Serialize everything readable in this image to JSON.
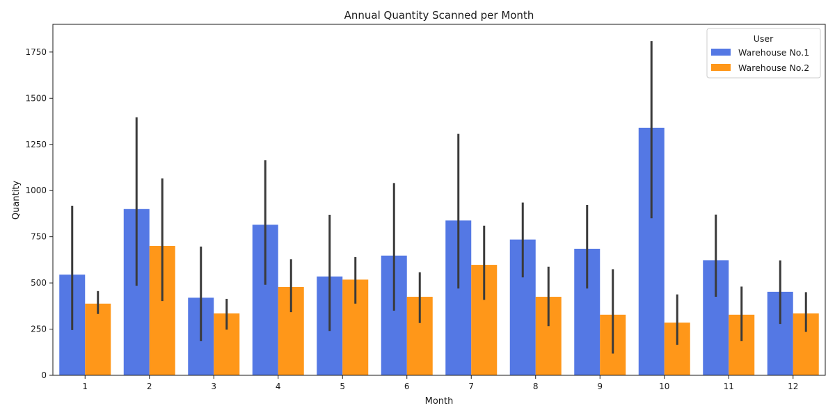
{
  "chart_data": {
    "type": "bar",
    "title": "Annual Quantity Scanned per Month",
    "xlabel": "Month",
    "ylabel": "Quantity",
    "categories": [
      "1",
      "2",
      "3",
      "4",
      "5",
      "6",
      "7",
      "8",
      "9",
      "10",
      "11",
      "12"
    ],
    "yticks": [
      0,
      250,
      500,
      750,
      1000,
      1250,
      1500,
      1750
    ],
    "ylim": [
      0,
      1900
    ],
    "grid": false,
    "legend": {
      "title": "User",
      "position": "top-right"
    },
    "series": [
      {
        "name": "Warehouse No.1",
        "color": "#4169e1",
        "values": [
          545,
          900,
          420,
          815,
          535,
          648,
          838,
          735,
          685,
          1340,
          623,
          452
        ],
        "error_low": [
          245,
          485,
          185,
          490,
          240,
          350,
          470,
          530,
          470,
          850,
          425,
          278
        ],
        "error_high": [
          918,
          1397,
          697,
          1165,
          869,
          1041,
          1307,
          935,
          922,
          1809,
          870,
          622
        ]
      },
      {
        "name": "Warehouse No.2",
        "color": "#ff8c00",
        "values": [
          388,
          700,
          335,
          478,
          518,
          425,
          598,
          425,
          328,
          285,
          328,
          335
        ],
        "error_low": [
          332,
          402,
          247,
          342,
          388,
          283,
          408,
          266,
          118,
          165,
          185,
          235
        ],
        "error_high": [
          456,
          1066,
          414,
          628,
          640,
          558,
          810,
          588,
          574,
          438,
          480,
          450
        ]
      }
    ]
  }
}
